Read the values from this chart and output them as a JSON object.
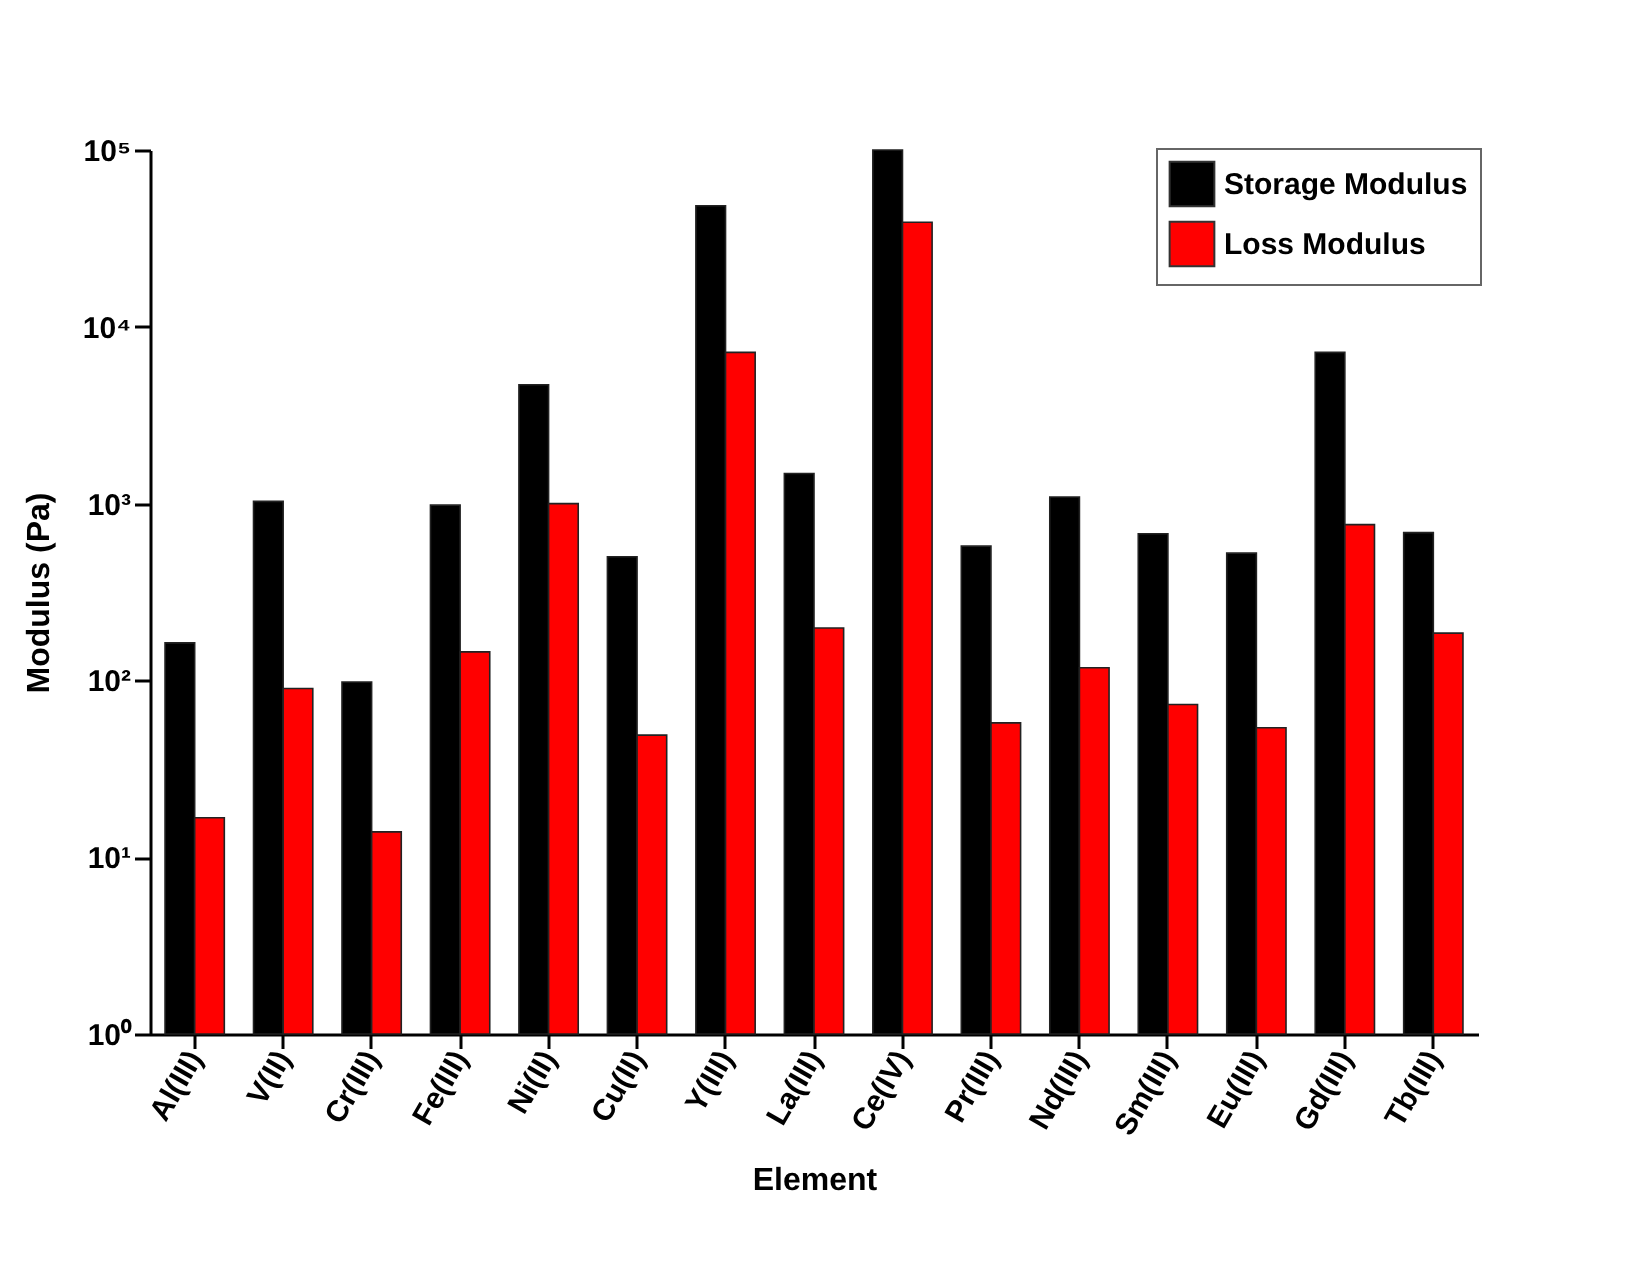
{
  "chart_data": {
    "type": "bar",
    "xlabel": "Element",
    "ylabel": "Modulus (Pa)",
    "categories": [
      "Al(III)",
      "V(II)",
      "Cr(III)",
      "Fe(III)",
      "Ni(II)",
      "Cu(II)",
      "Y(III)",
      "La(III)",
      "Ce(IV)",
      "Pr(III)",
      "Nd(III)",
      "Sm(III)",
      "Eu(III)",
      "Gd(III)",
      "Tb(III)"
    ],
    "series": [
      {
        "name": "Storage Modulus",
        "color": "#000000",
        "values": [
          163,
          1030,
          98,
          980,
          4700,
          500,
          48400,
          1480,
          100000,
          575,
          1090,
          675,
          525,
          7170,
          685
        ]
      },
      {
        "name": "Loss Modulus",
        "color": "#ff0000",
        "values": [
          16.7,
          90,
          13.9,
          145,
          1000,
          49,
          7170,
          198,
          39000,
          57.5,
          118,
          73,
          54,
          760,
          185
        ]
      }
    ],
    "log": "y",
    "ylim": [
      1,
      100000
    ],
    "yticks": [
      {
        "value": 1,
        "label": "10⁰"
      },
      {
        "value": 10,
        "label": "10¹"
      },
      {
        "value": 100,
        "label": "10²"
      },
      {
        "value": 1000,
        "label": "10³"
      },
      {
        "value": 10000,
        "label": "10⁴"
      },
      {
        "value": 100000,
        "label": "10⁵"
      }
    ],
    "grid": false,
    "legend": "top right"
  }
}
